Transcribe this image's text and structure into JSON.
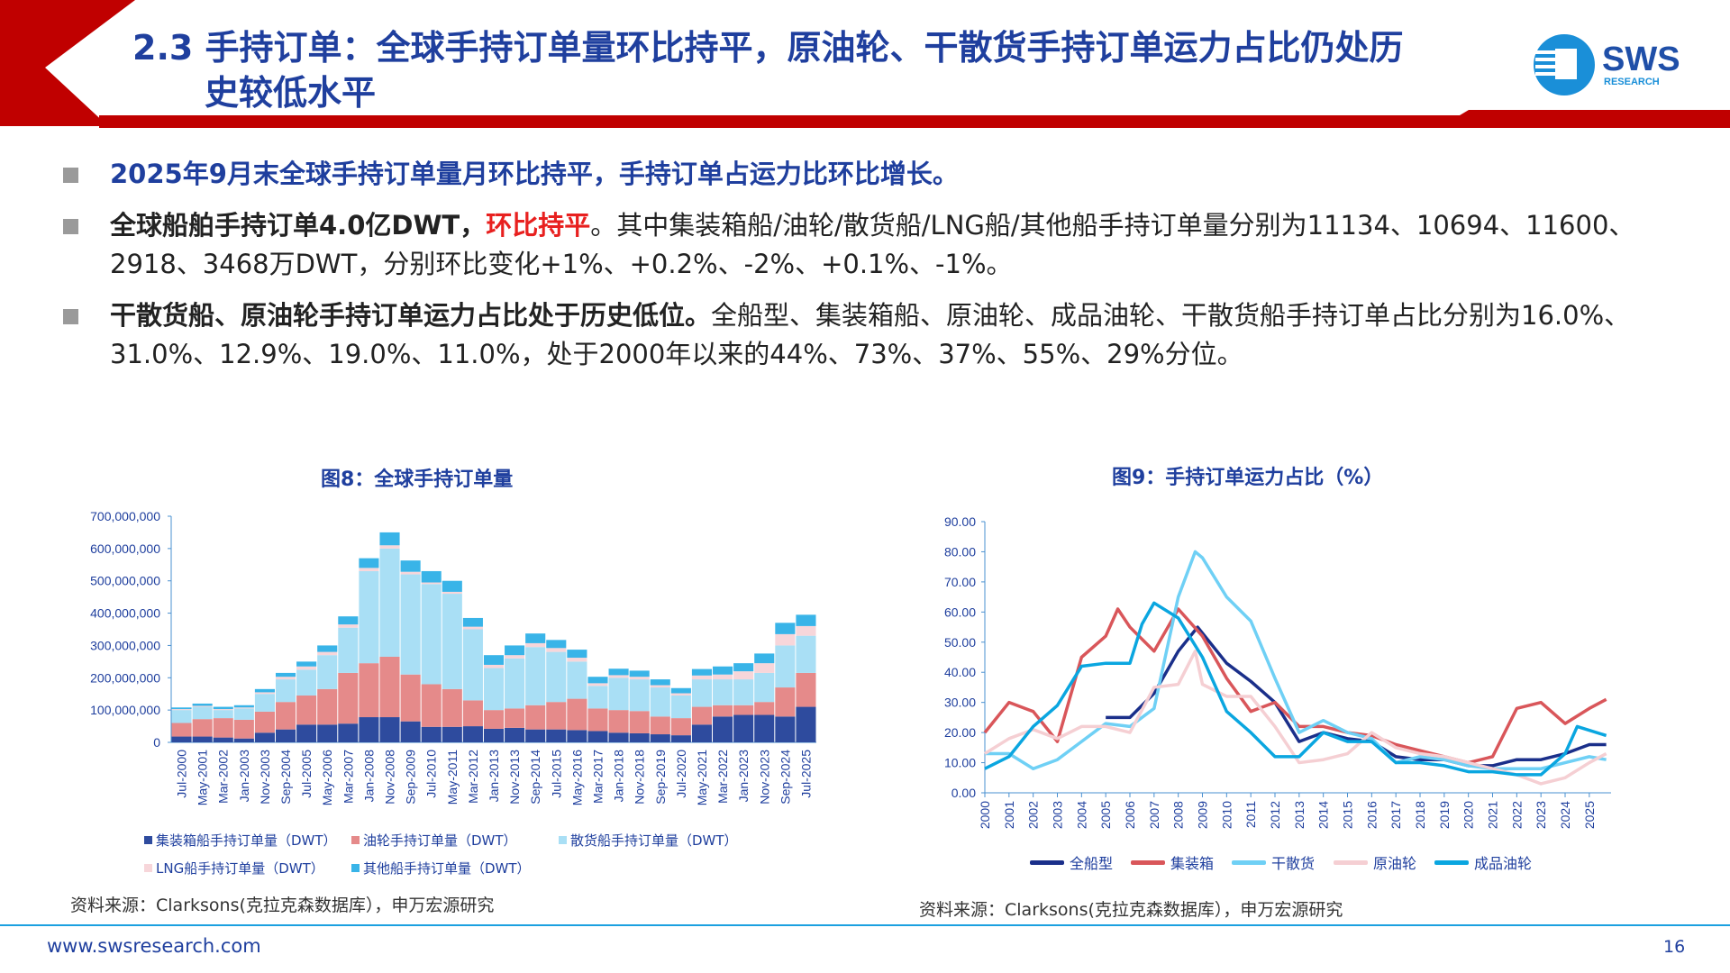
{
  "header": {
    "title_line1": "2.3 手持订单：全球手持订单量环比持平，原油轮、干散货手持订单运力占比仍处历",
    "title_line2": "史较低水平",
    "logo_text": "SWS",
    "logo_subtext": "RESEARCH",
    "brand_red": "#c00000",
    "title_color": "#1f3f9e"
  },
  "bullets": [
    {
      "bold": "2025年9月末全球手持订单量月环比持平，手持订单占运力比环比增长。"
    },
    {
      "bold": "全球船舶手持订单4.0亿DWT，",
      "highlight": "环比持平",
      "rest": "。其中集装箱船/油轮/散货船/LNG船/其他船手持订单量分别为11134、10694、11600、2918、3468万DWT，分别环比变化+1%、+0.2%、-2%、+0.1%、-1%。"
    },
    {
      "bold": "干散货船、原油轮手持订单运力占比处于历史低位。",
      "rest": "全船型、集装箱船、原油轮、成品油轮、干散货船手持订单占比分别为16.0%、31.0%、12.9%、19.0%、11.0%，处于2000年以来的44%、73%、37%、55%、29%分位。"
    }
  ],
  "chart_data": [
    {
      "type": "bar",
      "stacked": true,
      "title": "图8：全球手持订单量",
      "source": "资料来源：Clarksons(克拉克森数据库），申万宏源研究",
      "ylim": [
        0,
        700000000
      ],
      "yticks": [
        "0",
        "100,000,000",
        "200,000,000",
        "300,000,000",
        "400,000,000",
        "500,000,000",
        "600,000,000",
        "700,000,000"
      ],
      "legend_position": "bottom",
      "categories": [
        "Jul-2000",
        "May-2001",
        "Mar-2002",
        "Jan-2003",
        "Nov-2003",
        "Sep-2004",
        "Jul-2005",
        "May-2006",
        "Mar-2007",
        "Jan-2008",
        "Nov-2008",
        "Sep-2009",
        "Jul-2010",
        "May-2011",
        "Mar-2012",
        "Jan-2013",
        "Nov-2013",
        "Sep-2014",
        "Jul-2015",
        "May-2016",
        "Mar-2017",
        "Jan-2018",
        "Nov-2018",
        "Sep-2019",
        "Jul-2020",
        "May-2021",
        "Mar-2022",
        "Jan-2023",
        "Nov-2023",
        "Sep-2024",
        "Jul-2025"
      ],
      "series": [
        {
          "name": "集装箱船手持订单量（DWT）",
          "color": "#2e4b9e",
          "values": [
            18000000,
            18000000,
            15000000,
            12000000,
            30000000,
            40000000,
            55000000,
            55000000,
            58000000,
            78000000,
            78000000,
            65000000,
            48000000,
            48000000,
            50000000,
            42000000,
            45000000,
            40000000,
            40000000,
            38000000,
            35000000,
            30000000,
            28000000,
            25000000,
            22000000,
            55000000,
            80000000,
            85000000,
            85000000,
            80000000,
            110000000
          ]
        },
        {
          "name": "油轮手持订单量（DWT）",
          "color": "#e58a8a",
          "values": [
            42000000,
            54000000,
            60000000,
            58000000,
            65000000,
            85000000,
            90000000,
            110000000,
            157000000,
            167000000,
            187000000,
            145000000,
            132000000,
            117000000,
            80000000,
            58000000,
            60000000,
            75000000,
            85000000,
            97000000,
            70000000,
            70000000,
            69000000,
            55000000,
            53000000,
            55000000,
            35000000,
            30000000,
            40000000,
            90000000,
            105000000
          ]
        },
        {
          "name": "散货船手持订单量（DWT）",
          "color": "#a9dff5",
          "values": [
            40000000,
            38000000,
            25000000,
            35000000,
            55000000,
            70000000,
            80000000,
            105000000,
            140000000,
            285000000,
            335000000,
            310000000,
            310000000,
            295000000,
            220000000,
            130000000,
            155000000,
            180000000,
            155000000,
            115000000,
            70000000,
            100000000,
            98000000,
            90000000,
            70000000,
            85000000,
            80000000,
            80000000,
            90000000,
            130000000,
            115000000
          ]
        },
        {
          "name": "LNG船手持订单量（DWT）",
          "color": "#f7d6da",
          "values": [
            3000000,
            3000000,
            3000000,
            3000000,
            5000000,
            8000000,
            10000000,
            10000000,
            10000000,
            10000000,
            10000000,
            8000000,
            5000000,
            6000000,
            8000000,
            10000000,
            10000000,
            12000000,
            12000000,
            12000000,
            8000000,
            8000000,
            8000000,
            7000000,
            7000000,
            12000000,
            15000000,
            25000000,
            30000000,
            35000000,
            30000000
          ]
        },
        {
          "name": "其他船手持订单量（DWT）",
          "color": "#39b4e8",
          "values": [
            5000000,
            7000000,
            7000000,
            7000000,
            10000000,
            12000000,
            15000000,
            20000000,
            25000000,
            30000000,
            40000000,
            35000000,
            35000000,
            34000000,
            27000000,
            30000000,
            30000000,
            30000000,
            25000000,
            25000000,
            20000000,
            20000000,
            19000000,
            18000000,
            16000000,
            20000000,
            25000000,
            25000000,
            30000000,
            35000000,
            35000000
          ]
        }
      ]
    },
    {
      "type": "line",
      "title": "图9：手持订单运力占比（%）",
      "source": "资料来源：Clarksons(克拉克森数据库），申万宏源研究",
      "ylim": [
        0,
        90
      ],
      "yticks": [
        "0.00",
        "10.00",
        "20.00",
        "30.00",
        "40.00",
        "50.00",
        "60.00",
        "70.00",
        "80.00",
        "90.00"
      ],
      "xticks": [
        "2000",
        "2001",
        "2002",
        "2003",
        "2004",
        "2005",
        "2006",
        "2007",
        "2008",
        "2009",
        "2010",
        "2011",
        "2012",
        "2013",
        "2014",
        "2015",
        "2016",
        "2017",
        "2018",
        "2019",
        "2020",
        "2021",
        "2022",
        "2023",
        "2024",
        "2025"
      ],
      "legend_position": "bottom",
      "series": [
        {
          "name": "全船型",
          "color": "#1a2f8a",
          "x": [
            2005,
            2006,
            2007,
            2008,
            2008.8,
            2010,
            2011,
            2012,
            2013,
            2014,
            2015,
            2016,
            2017,
            2018,
            2019,
            2020,
            2021,
            2022,
            2023,
            2024,
            2025,
            2025.7
          ],
          "y": [
            25,
            25,
            33,
            47,
            55,
            43,
            37,
            30,
            17,
            20,
            18,
            17,
            12,
            11,
            11,
            9,
            9,
            11,
            11,
            13,
            16,
            16
          ]
        },
        {
          "name": "集装箱",
          "color": "#d9565a",
          "x": [
            2000,
            2001,
            2002,
            2003,
            2004,
            2005,
            2005.5,
            2006,
            2007,
            2008,
            2009,
            2010,
            2011,
            2012,
            2013,
            2014,
            2015,
            2016,
            2017,
            2018,
            2019,
            2020,
            2021,
            2022,
            2023,
            2024,
            2025,
            2025.7
          ],
          "y": [
            20,
            30,
            27,
            17,
            45,
            52,
            61,
            55,
            47,
            61,
            52,
            38,
            27,
            30,
            22,
            22,
            20,
            19,
            16,
            14,
            12,
            10,
            12,
            28,
            30,
            23,
            28,
            31
          ]
        },
        {
          "name": "干散货",
          "color": "#6fd0f5",
          "x": [
            2000,
            2001,
            2002,
            2003,
            2004,
            2005,
            2006,
            2007,
            2008,
            2008.7,
            2009,
            2010,
            2011,
            2012,
            2013,
            2014,
            2015,
            2016,
            2017,
            2018,
            2019,
            2020,
            2021,
            2022,
            2023,
            2024,
            2025,
            2025.7
          ],
          "y": [
            13,
            13,
            8,
            11,
            17,
            23,
            22,
            28,
            65,
            80,
            78,
            65,
            57,
            38,
            20,
            24,
            20,
            18,
            10,
            12,
            11,
            9,
            8,
            8,
            8,
            10,
            12,
            11
          ]
        },
        {
          "name": "原油轮",
          "color": "#f5cfd3",
          "x": [
            2000,
            2001,
            2002,
            2003,
            2004,
            2005,
            2006,
            2007,
            2008,
            2008.7,
            2009,
            2010,
            2011,
            2012,
            2013,
            2014,
            2015,
            2016,
            2017,
            2018,
            2019,
            2020,
            2021,
            2022,
            2023,
            2024,
            2025,
            2025.7
          ],
          "y": [
            13,
            18,
            21,
            18,
            22,
            22,
            20,
            35,
            36,
            47,
            36,
            32,
            32,
            22,
            10,
            11,
            13,
            20,
            15,
            13,
            12,
            10,
            8,
            6,
            3,
            5,
            10,
            13
          ]
        },
        {
          "name": "成品油轮",
          "color": "#0aa6e0",
          "x": [
            2000,
            2001,
            2002,
            2003,
            2004,
            2005,
            2006,
            2006.5,
            2007,
            2008,
            2009,
            2010,
            2011,
            2012,
            2013,
            2014,
            2015,
            2016,
            2017,
            2018,
            2019,
            2020,
            2021,
            2022,
            2023,
            2024,
            2024.5,
            2025.7
          ],
          "y": [
            8,
            12,
            22,
            29,
            42,
            43,
            43,
            56,
            63,
            58,
            45,
            27,
            20,
            12,
            12,
            20,
            17,
            17,
            10,
            10,
            9,
            7,
            7,
            6,
            6,
            13,
            22,
            19
          ]
        }
      ]
    }
  ],
  "footer": {
    "url": "www.swsresearch.com",
    "page": "16"
  }
}
